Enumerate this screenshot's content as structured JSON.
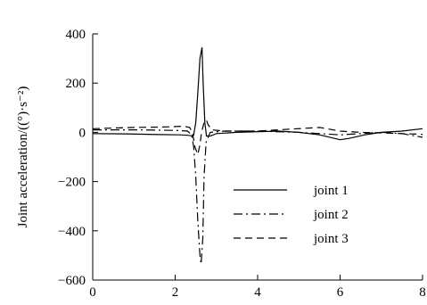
{
  "chart_data": {
    "type": "line",
    "ylabel": "Joint acceleration/((°)·s⁻²)",
    "xlim": [
      0,
      8
    ],
    "ylim": [
      -600,
      400
    ],
    "xticks": [
      0,
      2,
      4,
      6,
      8
    ],
    "yticks": [
      400,
      200,
      0,
      -200,
      -400,
      -600
    ],
    "xtick_labels": [
      "0",
      "2",
      "4",
      "6",
      "8"
    ],
    "ytick_labels": [
      "400",
      "200",
      "0",
      "−200",
      "−400",
      "−600"
    ],
    "grid": false,
    "legend_position": "lower-right",
    "series": [
      {
        "name": "joint 1",
        "dash": "solid",
        "color": "#000000",
        "points": [
          [
            0,
            -5
          ],
          [
            0.8,
            -6
          ],
          [
            1.6,
            -9
          ],
          [
            2.1,
            -10
          ],
          [
            2.3,
            -12
          ],
          [
            2.4,
            -14
          ],
          [
            2.45,
            -10
          ],
          [
            2.5,
            40
          ],
          [
            2.55,
            160
          ],
          [
            2.6,
            300
          ],
          [
            2.65,
            345
          ],
          [
            2.68,
            200
          ],
          [
            2.72,
            40
          ],
          [
            2.76,
            -15
          ],
          [
            2.85,
            -15
          ],
          [
            3.0,
            -5
          ],
          [
            3.5,
            0
          ],
          [
            4.5,
            5
          ],
          [
            5.0,
            0
          ],
          [
            5.5,
            -10
          ],
          [
            6.0,
            -30
          ],
          [
            6.2,
            -25
          ],
          [
            6.6,
            -10
          ],
          [
            7.0,
            0
          ],
          [
            7.5,
            5
          ],
          [
            8.0,
            15
          ]
        ]
      },
      {
        "name": "joint 2",
        "dash": "dashdot",
        "color": "#000000",
        "points": [
          [
            0,
            10
          ],
          [
            1.0,
            10
          ],
          [
            2.0,
            8
          ],
          [
            2.3,
            5
          ],
          [
            2.4,
            -10
          ],
          [
            2.45,
            -60
          ],
          [
            2.5,
            -180
          ],
          [
            2.55,
            -360
          ],
          [
            2.6,
            -500
          ],
          [
            2.63,
            -535
          ],
          [
            2.67,
            -430
          ],
          [
            2.7,
            -180
          ],
          [
            2.75,
            -40
          ],
          [
            2.85,
            0
          ],
          [
            3.2,
            5
          ],
          [
            4.0,
            5
          ],
          [
            5.0,
            0
          ],
          [
            6.0,
            -10
          ],
          [
            6.5,
            -5
          ],
          [
            7.0,
            0
          ],
          [
            7.5,
            -5
          ],
          [
            8.0,
            -20
          ]
        ]
      },
      {
        "name": "joint 3",
        "dash": "dashed",
        "color": "#000000",
        "points": [
          [
            0,
            15
          ],
          [
            1.0,
            20
          ],
          [
            1.8,
            22
          ],
          [
            2.2,
            25
          ],
          [
            2.35,
            20
          ],
          [
            2.42,
            0
          ],
          [
            2.48,
            -60
          ],
          [
            2.55,
            -90
          ],
          [
            2.6,
            -50
          ],
          [
            2.64,
            0
          ],
          [
            2.7,
            40
          ],
          [
            2.76,
            50
          ],
          [
            2.8,
            30
          ],
          [
            2.9,
            10
          ],
          [
            3.2,
            5
          ],
          [
            4.0,
            5
          ],
          [
            4.5,
            10
          ],
          [
            5.5,
            20
          ],
          [
            6.0,
            5
          ],
          [
            6.5,
            0
          ],
          [
            7.0,
            -2
          ],
          [
            7.5,
            -5
          ],
          [
            8.0,
            -8
          ]
        ]
      }
    ]
  }
}
